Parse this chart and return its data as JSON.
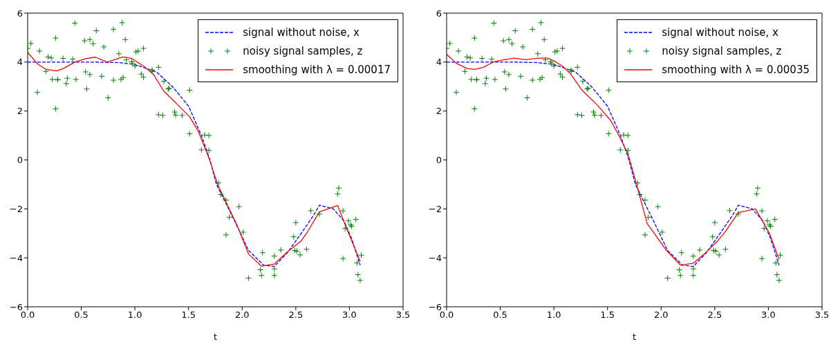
{
  "chart_data": [
    {
      "type": "line",
      "xlabel": "t",
      "xlim": [
        0,
        3.5
      ],
      "xticks": [
        {
          "value": 0,
          "label": "0.0"
        },
        {
          "value": 0.5,
          "label": "0.5"
        },
        {
          "value": 1,
          "label": "1.0"
        },
        {
          "value": 1.5,
          "label": "1.5"
        },
        {
          "value": 2,
          "label": "2.0"
        },
        {
          "value": 2.5,
          "label": "2.5"
        },
        {
          "value": 3,
          "label": "3.0"
        },
        {
          "value": 3.5,
          "label": "3.5"
        }
      ],
      "ylim": [
        -6,
        6
      ],
      "yticks": [
        -6,
        -4,
        -2,
        0,
        2,
        4,
        6
      ],
      "grid": false,
      "legend": "top right",
      "series": [
        {
          "name": "signal without noise, x",
          "color": "#0000ff",
          "line_style": "dashed",
          "marker": "none",
          "x": [
            0,
            0.3,
            0.6,
            0.85,
            1.0,
            1.2,
            1.35,
            1.5,
            1.62,
            1.7,
            1.76,
            1.93,
            2.06,
            2.2,
            2.3,
            2.42,
            2.55,
            2.66,
            2.72,
            2.85,
            2.95,
            3.02,
            3.1
          ],
          "values": [
            4,
            4,
            4,
            3.98,
            3.9,
            3.6,
            3.0,
            2.2,
            1.0,
            0,
            -1,
            -2.5,
            -3.7,
            -4.3,
            -4.35,
            -3.8,
            -3.0,
            -2.3,
            -1.85,
            -2.0,
            -2.5,
            -3.2,
            -4.3
          ]
        },
        {
          "type": "scatter",
          "name": "noisy signal samples, z",
          "color": "#008000",
          "marker": "cross",
          "x": [
            0.0,
            0.03,
            0.09,
            0.11,
            0.17,
            0.19,
            0.22,
            0.23,
            0.26,
            0.26,
            0.28,
            0.28,
            0.33,
            0.36,
            0.37,
            0.42,
            0.44,
            0.45,
            0.53,
            0.54,
            0.55,
            0.58,
            0.58,
            0.61,
            0.64,
            0.69,
            0.71,
            0.75,
            0.8,
            0.8,
            0.85,
            0.87,
            0.88,
            0.89,
            0.91,
            0.92,
            0.97,
            0.98,
            1.0,
            1.01,
            1.03,
            1.06,
            1.08,
            1.08,
            1.16,
            1.16,
            1.22,
            1.22,
            1.26,
            1.27,
            1.31,
            1.32,
            1.37,
            1.38,
            1.44,
            1.51,
            1.51,
            1.62,
            1.65,
            1.69,
            1.69,
            1.78,
            1.8,
            1.85,
            1.85,
            1.88,
            1.97,
            2.01,
            2.06,
            2.17,
            2.18,
            2.19,
            2.3,
            2.3,
            2.3,
            2.36,
            2.48,
            2.49,
            2.5,
            2.51,
            2.54,
            2.6,
            2.64,
            2.72,
            2.89,
            2.9,
            2.94,
            2.94,
            2.96,
            2.99,
            3.01,
            3.02,
            3.06,
            3.07,
            3.08,
            3.1,
            3.11
          ],
          "values": [
            4.56,
            4.76,
            2.76,
            4.45,
            3.62,
            4.21,
            4.17,
            3.29,
            2.09,
            4.98,
            3.27,
            3.29,
            4.15,
            3.12,
            3.34,
            4.12,
            5.59,
            3.29,
            4.87,
            3.6,
            2.9,
            4.92,
            3.49,
            4.75,
            5.28,
            3.42,
            4.62,
            2.54,
            5.34,
            3.26,
            4.34,
            3.29,
            5.61,
            3.37,
            4.92,
            4.09,
            4.01,
            3.93,
            3.84,
            4.42,
            4.45,
            3.51,
            4.56,
            3.38,
            3.68,
            3.62,
            3.79,
            1.85,
            1.82,
            3.21,
            2.9,
            2.93,
            1.96,
            1.83,
            1.82,
            2.85,
            1.07,
            0.41,
            1.02,
            1.0,
            0.39,
            -0.94,
            -1.41,
            -1.64,
            -3.06,
            -2.34,
            -1.91,
            -2.95,
            -4.83,
            -4.49,
            -4.72,
            -3.79,
            -3.93,
            -4.45,
            -4.72,
            -3.68,
            -3.14,
            -3.7,
            -2.56,
            -3.73,
            -3.88,
            -3.65,
            -2.07,
            -2.21,
            -1.39,
            -1.15,
            -2.08,
            -4.03,
            -2.8,
            -2.49,
            -2.65,
            -2.71,
            -2.43,
            -4.21,
            -4.69,
            -4.92,
            -3.89
          ]
        },
        {
          "name": "smoothing with λ = 0.00017",
          "color": "#ff0000",
          "line_style": "solid",
          "marker": "none",
          "x": [
            0,
            0.09,
            0.17,
            0.27,
            0.33,
            0.44,
            0.54,
            0.63,
            0.74,
            0.89,
            0.97,
            1.02,
            1.08,
            1.17,
            1.27,
            1.39,
            1.51,
            1.59,
            1.69,
            1.77,
            1.95,
            2.06,
            2.18,
            2.3,
            2.42,
            2.55,
            2.61,
            2.72,
            2.89,
            2.97,
            3.1
          ],
          "values": [
            4.4,
            3.93,
            3.7,
            3.64,
            3.73,
            4.0,
            4.14,
            4.2,
            4.0,
            4.21,
            4.15,
            4.0,
            3.84,
            3.51,
            2.81,
            2.29,
            1.76,
            1.18,
            0.08,
            -0.99,
            -2.65,
            -3.85,
            -4.34,
            -4.25,
            -3.76,
            -3.31,
            -2.93,
            -2.12,
            -1.86,
            -2.76,
            -4.14
          ]
        }
      ]
    },
    {
      "type": "line",
      "xlabel": "t",
      "xlim": [
        0,
        3.5
      ],
      "xticks": [
        {
          "value": 0,
          "label": "0.0"
        },
        {
          "value": 0.5,
          "label": "0.5"
        },
        {
          "value": 1,
          "label": "1.0"
        },
        {
          "value": 1.5,
          "label": "1.5"
        },
        {
          "value": 2,
          "label": "2.0"
        },
        {
          "value": 2.5,
          "label": "2.5"
        },
        {
          "value": 3,
          "label": "3.0"
        },
        {
          "value": 3.5,
          "label": "3.5"
        }
      ],
      "ylim": [
        -6,
        6
      ],
      "yticks": [
        -6,
        -4,
        -2,
        0,
        2,
        4,
        6
      ],
      "grid": false,
      "legend": "top right",
      "series": [
        {
          "name": "signal without noise, x",
          "color": "#0000ff",
          "line_style": "dashed",
          "marker": "none",
          "x": [
            0,
            0.3,
            0.6,
            0.85,
            1.0,
            1.2,
            1.35,
            1.5,
            1.62,
            1.7,
            1.76,
            1.93,
            2.06,
            2.2,
            2.3,
            2.42,
            2.55,
            2.66,
            2.72,
            2.85,
            2.95,
            3.02,
            3.1
          ],
          "values": [
            4,
            4,
            4,
            3.98,
            3.9,
            3.6,
            3.0,
            2.2,
            1.0,
            0,
            -1,
            -2.5,
            -3.7,
            -4.3,
            -4.35,
            -3.8,
            -3.0,
            -2.3,
            -1.85,
            -2.0,
            -2.5,
            -3.2,
            -4.3
          ]
        },
        {
          "type": "scatter",
          "name": "noisy signal samples, z",
          "color": "#008000",
          "marker": "cross",
          "x": [
            0.0,
            0.03,
            0.09,
            0.11,
            0.17,
            0.19,
            0.22,
            0.23,
            0.26,
            0.26,
            0.28,
            0.28,
            0.33,
            0.36,
            0.37,
            0.42,
            0.44,
            0.45,
            0.53,
            0.54,
            0.55,
            0.58,
            0.58,
            0.61,
            0.64,
            0.69,
            0.71,
            0.75,
            0.8,
            0.8,
            0.85,
            0.87,
            0.88,
            0.89,
            0.91,
            0.92,
            0.97,
            0.98,
            1.0,
            1.01,
            1.03,
            1.06,
            1.08,
            1.08,
            1.16,
            1.16,
            1.22,
            1.22,
            1.26,
            1.27,
            1.31,
            1.32,
            1.37,
            1.38,
            1.44,
            1.51,
            1.51,
            1.62,
            1.65,
            1.69,
            1.69,
            1.78,
            1.8,
            1.85,
            1.85,
            1.88,
            1.97,
            2.01,
            2.06,
            2.17,
            2.18,
            2.19,
            2.3,
            2.3,
            2.3,
            2.36,
            2.48,
            2.49,
            2.5,
            2.51,
            2.54,
            2.6,
            2.64,
            2.72,
            2.89,
            2.9,
            2.94,
            2.94,
            2.96,
            2.99,
            3.01,
            3.02,
            3.06,
            3.07,
            3.08,
            3.1,
            3.11
          ],
          "values": [
            4.56,
            4.76,
            2.76,
            4.45,
            3.62,
            4.21,
            4.17,
            3.29,
            2.09,
            4.98,
            3.27,
            3.29,
            4.15,
            3.12,
            3.34,
            4.12,
            5.59,
            3.29,
            4.87,
            3.6,
            2.9,
            4.92,
            3.49,
            4.75,
            5.28,
            3.42,
            4.62,
            2.54,
            5.34,
            3.26,
            4.34,
            3.29,
            5.61,
            3.37,
            4.92,
            4.09,
            4.01,
            3.93,
            3.84,
            4.42,
            4.45,
            3.51,
            4.56,
            3.38,
            3.68,
            3.62,
            3.79,
            1.85,
            1.82,
            3.21,
            2.9,
            2.93,
            1.96,
            1.83,
            1.82,
            2.85,
            1.07,
            0.41,
            1.02,
            1.0,
            0.39,
            -0.94,
            -1.41,
            -1.64,
            -3.06,
            -2.34,
            -1.91,
            -2.95,
            -4.83,
            -4.49,
            -4.72,
            -3.79,
            -3.93,
            -4.45,
            -4.72,
            -3.68,
            -3.14,
            -3.7,
            -2.56,
            -3.73,
            -3.88,
            -3.65,
            -2.07,
            -2.21,
            -1.39,
            -1.15,
            -2.08,
            -4.03,
            -2.8,
            -2.49,
            -2.65,
            -2.71,
            -2.43,
            -4.21,
            -4.69,
            -4.92,
            -3.89
          ]
        },
        {
          "name": "smoothing with λ = 0.00035",
          "color": "#ff0000",
          "line_style": "solid",
          "marker": "none",
          "x": [
            0,
            0.09,
            0.19,
            0.26,
            0.34,
            0.44,
            0.54,
            0.63,
            0.74,
            0.86,
            0.94,
            0.99,
            1.08,
            1.16,
            1.26,
            1.41,
            1.53,
            1.61,
            1.69,
            1.76,
            1.87,
            2.05,
            2.18,
            2.3,
            2.4,
            2.52,
            2.6,
            2.72,
            2.88,
            3.01,
            3.1
          ],
          "values": [
            4.32,
            3.95,
            3.74,
            3.7,
            3.78,
            4.01,
            4.1,
            4.16,
            4.1,
            4.16,
            4.16,
            4.07,
            3.84,
            3.49,
            2.86,
            2.22,
            1.61,
            0.96,
            0.26,
            -0.83,
            -2.6,
            -3.7,
            -4.3,
            -4.22,
            -3.85,
            -3.34,
            -2.92,
            -2.15,
            -2.0,
            -3.0,
            -4.07
          ]
        }
      ]
    }
  ]
}
